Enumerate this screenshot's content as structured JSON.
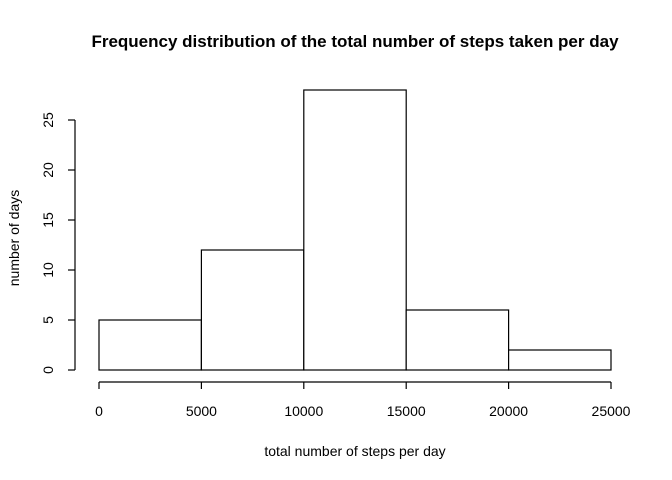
{
  "chart_data": {
    "type": "bar",
    "title": "Frequency distribution of the total number of steps taken per day",
    "xlabel": "total number of steps per day",
    "ylabel": "number of days",
    "bins": [
      {
        "from": 0,
        "to": 5000,
        "count": 5
      },
      {
        "from": 5000,
        "to": 10000,
        "count": 12
      },
      {
        "from": 10000,
        "to": 15000,
        "count": 28
      },
      {
        "from": 15000,
        "to": 20000,
        "count": 6
      },
      {
        "from": 20000,
        "to": 25000,
        "count": 2
      }
    ],
    "xticks": [
      0,
      5000,
      10000,
      15000,
      20000,
      25000
    ],
    "xtick_labels": [
      "0",
      "5000",
      "10000",
      "15000",
      "20000",
      "25000"
    ],
    "yticks": [
      0,
      5,
      10,
      15,
      20,
      25
    ],
    "ytick_labels": [
      "0",
      "5",
      "10",
      "15",
      "20",
      "25"
    ],
    "xlim": [
      0,
      25000
    ],
    "ylim": [
      0,
      28
    ],
    "grid": false,
    "bar_fill": "#ffffff",
    "bar_stroke": "#000000"
  }
}
